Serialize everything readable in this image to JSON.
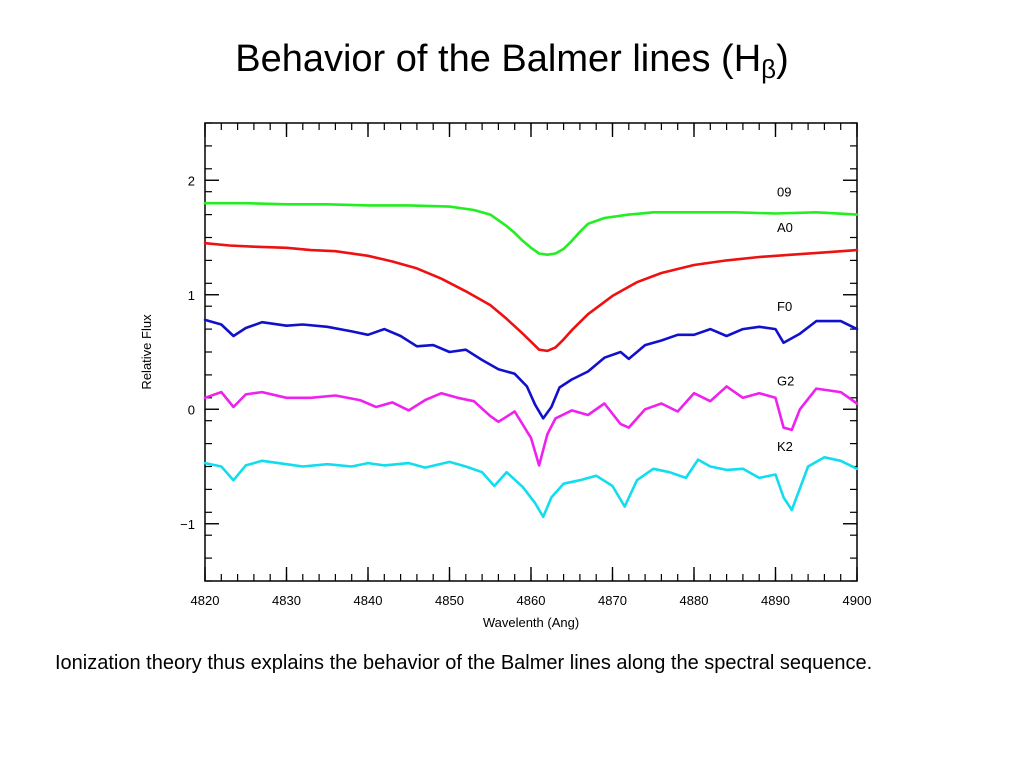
{
  "title": {
    "main": "Behavior of the Balmer lines (H",
    "subscript": "β",
    "close": ")"
  },
  "caption": "Ionization theory thus explains the behavior of the Balmer lines along the spectral sequence.",
  "chart_data": {
    "type": "line",
    "title": "",
    "xlabel": "Wavelenth (Ang)",
    "ylabel": "Relative Flux",
    "xlim": [
      4820,
      4900
    ],
    "ylim": [
      -1.5,
      2.5
    ],
    "xticks": [
      4820,
      4830,
      4840,
      4850,
      4860,
      4870,
      4880,
      4890,
      4900
    ],
    "xtick_labels": [
      "4820",
      "4830",
      "4840",
      "4850",
      "4860",
      "4870",
      "4880",
      "4890",
      "4900"
    ],
    "yticks": [
      -1,
      0,
      1,
      2
    ],
    "ytick_labels": [
      "−1",
      "0",
      "1",
      "2"
    ],
    "grid": false,
    "series": [
      {
        "name": "09",
        "color": "#22ee22",
        "x": [
          4820,
          4825,
          4830,
          4835,
          4840,
          4845,
          4850,
          4853,
          4855,
          4857,
          4858,
          4859,
          4860,
          4861,
          4862,
          4863,
          4864,
          4865,
          4866,
          4867,
          4869,
          4872,
          4875,
          4880,
          4885,
          4890,
          4895,
          4900
        ],
        "y": [
          1.8,
          1.8,
          1.79,
          1.79,
          1.78,
          1.78,
          1.77,
          1.74,
          1.7,
          1.6,
          1.54,
          1.47,
          1.41,
          1.36,
          1.35,
          1.36,
          1.4,
          1.47,
          1.55,
          1.62,
          1.67,
          1.7,
          1.72,
          1.72,
          1.72,
          1.71,
          1.72,
          1.7
        ]
      },
      {
        "name": "A0",
        "color": "#ee1111",
        "x": [
          4820,
          4823,
          4826,
          4830,
          4833,
          4836,
          4840,
          4843,
          4846,
          4849,
          4852,
          4855,
          4857,
          4859,
          4860,
          4861,
          4862,
          4863,
          4864,
          4865,
          4867,
          4870,
          4873,
          4876,
          4880,
          4884,
          4888,
          4892,
          4896,
          4900
        ],
        "y": [
          1.45,
          1.43,
          1.42,
          1.41,
          1.39,
          1.38,
          1.34,
          1.29,
          1.23,
          1.14,
          1.03,
          0.91,
          0.79,
          0.66,
          0.59,
          0.52,
          0.51,
          0.54,
          0.61,
          0.69,
          0.83,
          0.99,
          1.11,
          1.19,
          1.26,
          1.3,
          1.33,
          1.35,
          1.37,
          1.39
        ]
      },
      {
        "name": "F0",
        "color": "#1111cc",
        "x": [
          4820,
          4822,
          4823.5,
          4825,
          4827,
          4830,
          4832,
          4835,
          4838,
          4840,
          4842,
          4844,
          4846,
          4848,
          4850,
          4852,
          4854,
          4856,
          4858,
          4859.5,
          4860.5,
          4861.5,
          4862.5,
          4863.5,
          4865,
          4867,
          4869,
          4871,
          4872,
          4874,
          4876,
          4878,
          4880,
          4882,
          4884,
          4886,
          4888,
          4890,
          4891,
          4893,
          4895,
          4898,
          4900
        ],
        "y": [
          0.78,
          0.74,
          0.64,
          0.71,
          0.76,
          0.73,
          0.74,
          0.72,
          0.68,
          0.65,
          0.7,
          0.64,
          0.55,
          0.56,
          0.5,
          0.52,
          0.43,
          0.35,
          0.31,
          0.2,
          0.04,
          -0.08,
          0.02,
          0.19,
          0.26,
          0.33,
          0.45,
          0.5,
          0.44,
          0.56,
          0.6,
          0.65,
          0.65,
          0.7,
          0.64,
          0.7,
          0.72,
          0.7,
          0.58,
          0.66,
          0.77,
          0.77,
          0.7
        ]
      },
      {
        "name": "G2",
        "color": "#ee22ee",
        "x": [
          4820,
          4822,
          4823.5,
          4825,
          4827,
          4830,
          4833,
          4836,
          4839,
          4841,
          4843,
          4845,
          4847,
          4849,
          4851,
          4853,
          4855,
          4856,
          4858,
          4860,
          4861,
          4862,
          4863,
          4865,
          4867,
          4869,
          4871,
          4872,
          4874,
          4876,
          4878,
          4880,
          4882,
          4884,
          4886,
          4888,
          4890,
          4891,
          4892,
          4893,
          4895,
          4898,
          4900
        ],
        "y": [
          0.1,
          0.15,
          0.02,
          0.13,
          0.15,
          0.1,
          0.1,
          0.12,
          0.08,
          0.02,
          0.06,
          -0.01,
          0.08,
          0.14,
          0.1,
          0.07,
          -0.06,
          -0.11,
          -0.02,
          -0.25,
          -0.49,
          -0.22,
          -0.08,
          -0.01,
          -0.05,
          0.05,
          -0.13,
          -0.16,
          0.0,
          0.05,
          -0.02,
          0.14,
          0.07,
          0.2,
          0.1,
          0.14,
          0.1,
          -0.16,
          -0.18,
          0.0,
          0.18,
          0.15,
          0.05
        ]
      },
      {
        "name": "K2",
        "color": "#11ddee",
        "x": [
          4820,
          4822,
          4823.5,
          4825,
          4827,
          4830,
          4832,
          4835,
          4838,
          4840,
          4842,
          4845,
          4847,
          4850,
          4852,
          4854,
          4855.5,
          4857,
          4859,
          4860.5,
          4861.5,
          4862.5,
          4864,
          4866,
          4868,
          4870,
          4871.5,
          4873,
          4875,
          4877,
          4879,
          4880.5,
          4882,
          4884,
          4886,
          4888,
          4890,
          4891,
          4892,
          4894,
          4896,
          4898,
          4900
        ],
        "y": [
          -0.47,
          -0.5,
          -0.62,
          -0.49,
          -0.45,
          -0.48,
          -0.5,
          -0.48,
          -0.5,
          -0.47,
          -0.49,
          -0.47,
          -0.51,
          -0.46,
          -0.5,
          -0.55,
          -0.67,
          -0.55,
          -0.68,
          -0.82,
          -0.94,
          -0.77,
          -0.65,
          -0.62,
          -0.58,
          -0.67,
          -0.85,
          -0.62,
          -0.52,
          -0.55,
          -0.6,
          -0.44,
          -0.5,
          -0.53,
          -0.52,
          -0.6,
          -0.57,
          -0.77,
          -0.88,
          -0.5,
          -0.42,
          -0.45,
          -0.52
        ]
      }
    ]
  }
}
